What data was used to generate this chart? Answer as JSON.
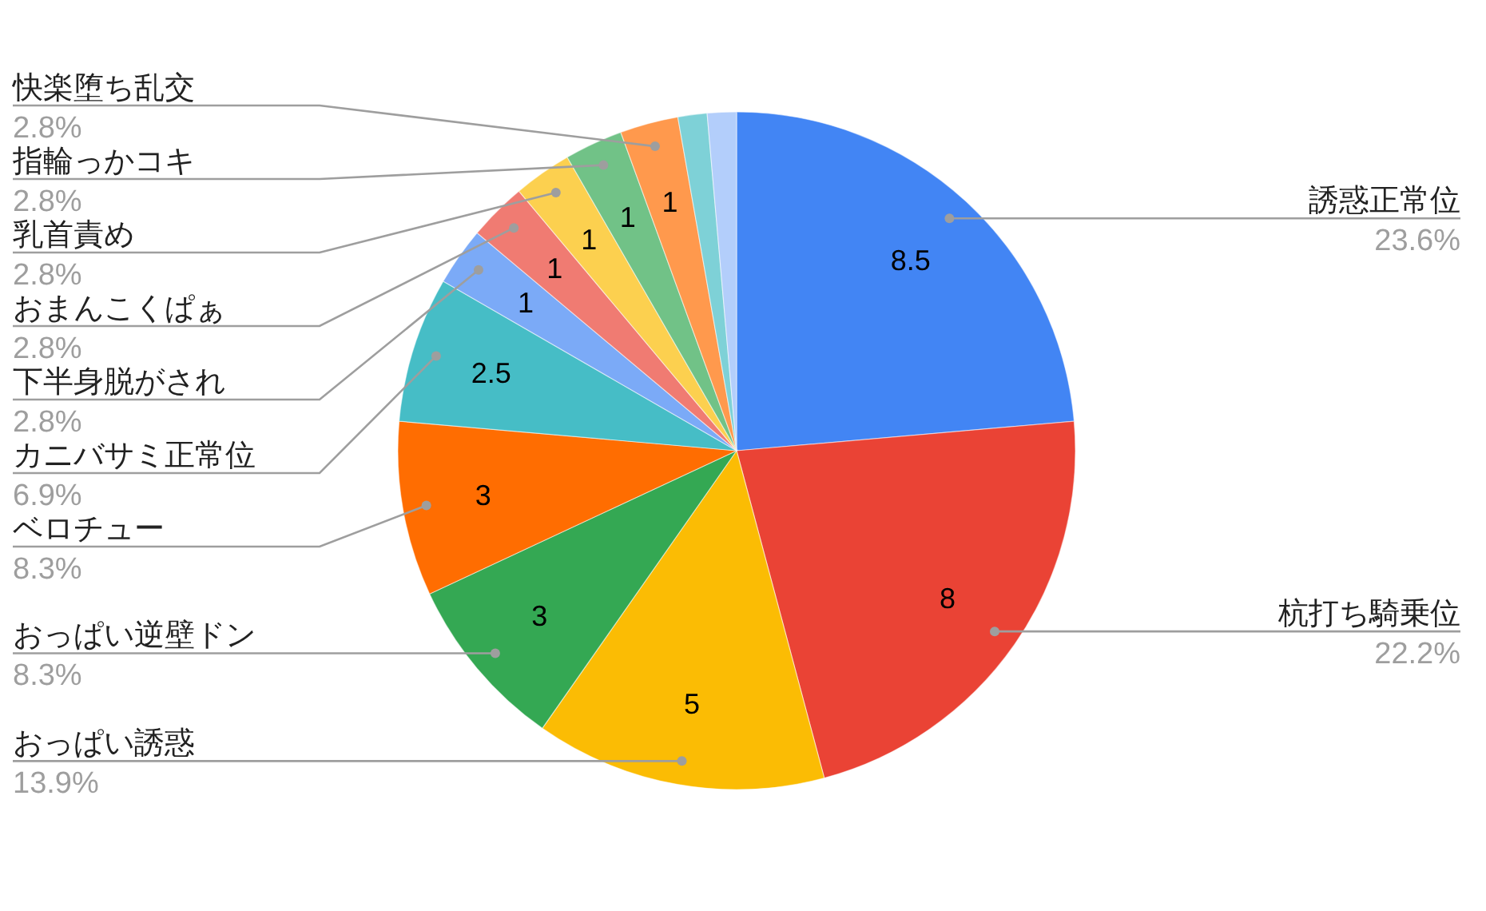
{
  "chart_data": {
    "type": "pie",
    "categories": [
      "誘惑正常位",
      "杭打ち騎乗位",
      "おっぱい誘惑",
      "おっぱい逆壁ドン",
      "ベロチュー",
      "カニバサミ正常位",
      "下半身脱がされ",
      "おまんこくぱぁ",
      "乳首責め",
      "指輪っかコキ",
      "快楽堕ち乱交",
      null,
      null
    ],
    "values": [
      8.5,
      8,
      5,
      3,
      3,
      2.5,
      1,
      1,
      1,
      1,
      1,
      0.5,
      0.5
    ],
    "colors": [
      "#4285f4",
      "#ea4335",
      "#fbbc04",
      "#34a853",
      "#ff6d01",
      "#46bdc6",
      "#7baaf7",
      "#f07b72",
      "#fcd04f",
      "#71c287",
      "#ff994d",
      "#7ed1d7",
      "#b3cefb"
    ],
    "value_labels": [
      "8.5",
      "8",
      "5",
      "3",
      "3",
      "2.5",
      "1",
      "1",
      "1",
      "1",
      "1",
      null,
      null
    ],
    "annotations": [
      "23.6%",
      "22.2%",
      "13.9%",
      "8.3%",
      "8.3%",
      "6.9%",
      "2.8%",
      "2.8%",
      "2.8%",
      "2.8%",
      "2.8%"
    ]
  }
}
